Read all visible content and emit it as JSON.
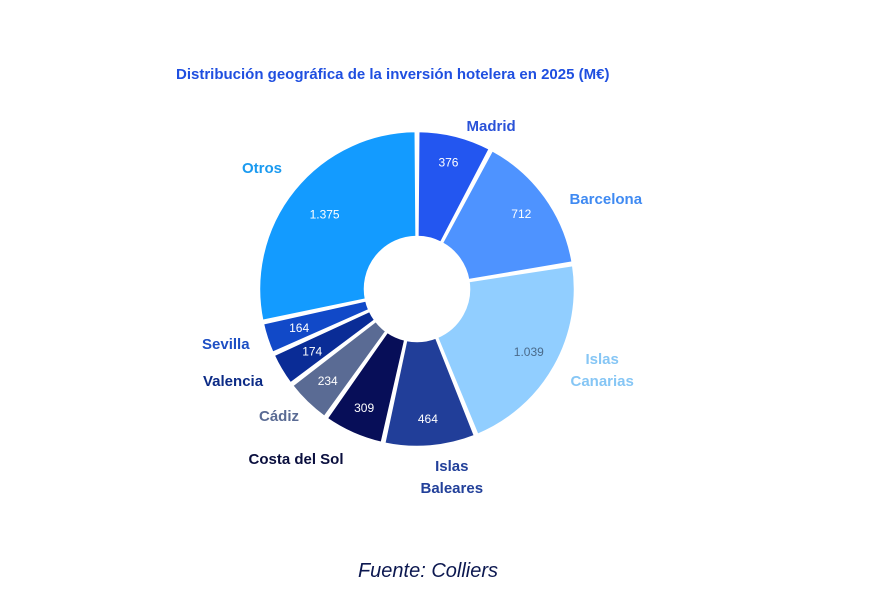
{
  "chart_data": {
    "type": "pie",
    "title": "Distribución geográfica de la inversión hotelera en 2025 (M€)",
    "source": "Fuente: Colliers",
    "slices": [
      {
        "label": "Madrid",
        "value": 376,
        "value_text": "376",
        "color": "#2356f0",
        "label_color": "#2a52d8"
      },
      {
        "label": "Barcelona",
        "value": 712,
        "value_text": "712",
        "color": "#4e93ff",
        "label_color": "#3f8af2"
      },
      {
        "label": "Islas\nCanarias",
        "value": 1039,
        "value_text": "1.039",
        "color": "#91ceff",
        "label_color": "#86c6f5"
      },
      {
        "label": "Islas\nBaleares",
        "value": 464,
        "value_text": "464",
        "color": "#213e99",
        "label_color": "#22409a"
      },
      {
        "label": "Costa del Sol",
        "value": 309,
        "value_text": "309",
        "color": "#070e58",
        "label_color": "#0a0f3e"
      },
      {
        "label": "Cádiz",
        "value": 234,
        "value_text": "234",
        "color": "#5a6b94",
        "label_color": "#5a6b94"
      },
      {
        "label": "Valencia",
        "value": 174,
        "value_text": "174",
        "color": "#0a2c96",
        "label_color": "#0c2b86"
      },
      {
        "label": "Sevilla",
        "value": 164,
        "value_text": "164",
        "color": "#1149c8",
        "label_color": "#1d4fc4"
      },
      {
        "label": "Otros",
        "value": 1375,
        "value_text": "1.375",
        "color": "#139bff",
        "label_color": "#1a9af0"
      }
    ]
  }
}
